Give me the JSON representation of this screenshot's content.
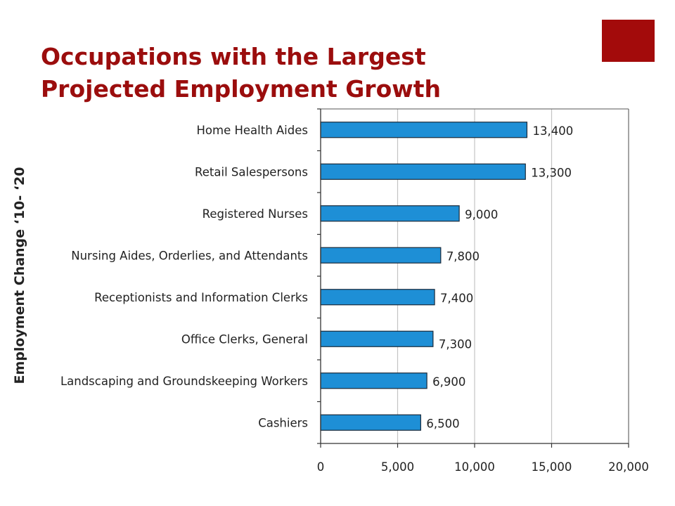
{
  "slide": {
    "title_line1": "Occupations with the Largest",
    "title_line2": "Projected Employment Growth"
  },
  "colors": {
    "title": "#9b0d0d",
    "accent_square": "#a30b0b",
    "bar_fill": "#1e8fd6",
    "bar_stroke": "#1a2a3a",
    "gridline": "#c4c4c4"
  },
  "chart_data": {
    "type": "bar",
    "orientation": "horizontal",
    "ylabel": "Employment Change ‘10- ‘20",
    "xlabel": "",
    "categories": [
      "Home Health Aides",
      "Retail Salespersons",
      "Registered Nurses",
      "Nursing Aides, Orderlies, and Attendants",
      "Receptionists and Information Clerks",
      "Office Clerks, General",
      "Landscaping and Groundskeeping Workers",
      "Cashiers"
    ],
    "values": [
      13400,
      13300,
      9000,
      7800,
      7400,
      7300,
      6900,
      6500
    ],
    "data_labels": [
      "13,400",
      "13,300",
      "9,000",
      "7,800",
      "7,400",
      "7,300",
      "6,900",
      "6,500"
    ],
    "xlim": [
      0,
      20000
    ],
    "xticks": [
      0,
      5000,
      10000,
      15000,
      20000
    ],
    "xtick_labels": [
      "0",
      "5,000",
      "10,000",
      "15,000",
      "20,000"
    ],
    "grid": "vertical"
  }
}
